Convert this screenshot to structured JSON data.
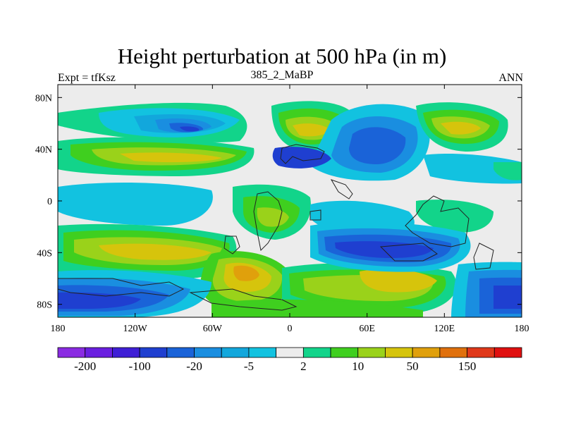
{
  "chart_data": {
    "type": "heatmap",
    "title": "Height perturbation at 500 hPa (in m)",
    "left_label": "Expt = tfKsz",
    "center_label": "385_2_MaBP",
    "right_label": "ANN",
    "x_ticks": [
      "180",
      "120W",
      "60W",
      "0",
      "60E",
      "120E",
      "180"
    ],
    "x_values": [
      -180,
      -120,
      -60,
      0,
      60,
      120,
      180
    ],
    "y_ticks": [
      "80N",
      "40N",
      "0",
      "40S",
      "80S"
    ],
    "y_values": [
      80,
      40,
      0,
      -40,
      -80
    ],
    "xlim": [
      -180,
      180
    ],
    "ylim": [
      -90,
      90
    ],
    "colorbar_labels": [
      "-200",
      "-100",
      "-20",
      "-5",
      "2",
      "10",
      "50",
      "150"
    ],
    "colorbar_colors": [
      "#8a2be2",
      "#6a1fe0",
      "#3f1fd6",
      "#1f3fd0",
      "#1a63d8",
      "#1a8ee0",
      "#12a7dc",
      "#12c2e0",
      "#ececec",
      "#12d48a",
      "#3fcf1f",
      "#9ad21a",
      "#d6c40c",
      "#e0a00c",
      "#e0700c",
      "#e0381a",
      "#e01010"
    ],
    "colorbar_label_positions": [
      1,
      3,
      5,
      7,
      9,
      11,
      13,
      15
    ]
  }
}
